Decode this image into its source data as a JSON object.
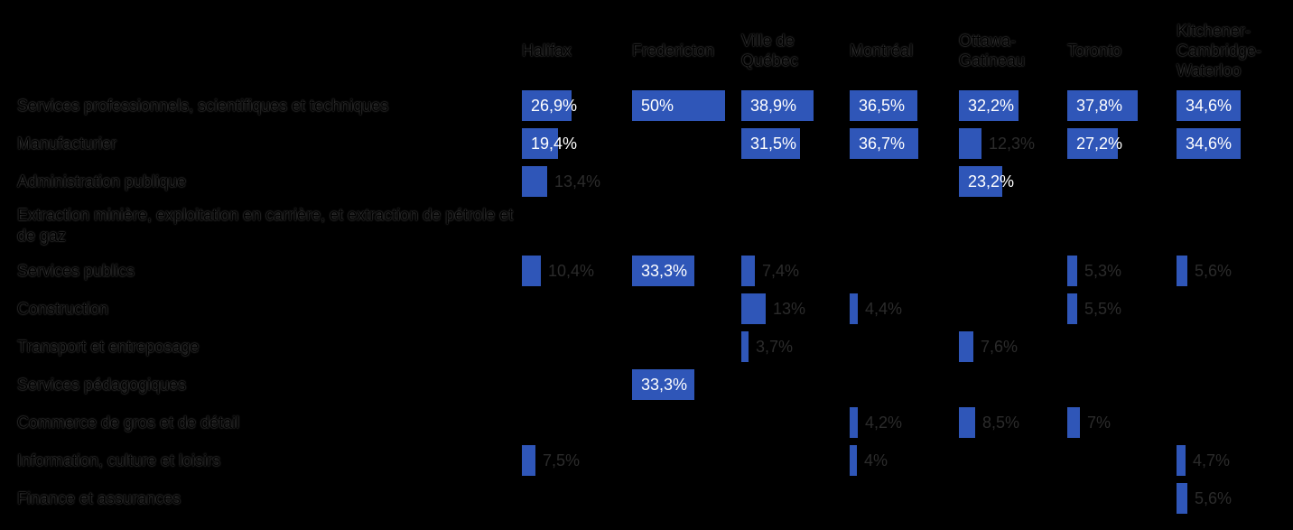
{
  "colors": {
    "bar": "#2f56b8",
    "background": "#000000",
    "value_inside": "#ffffff",
    "value_outside": "#2b2b2b"
  },
  "chart_data": {
    "type": "table",
    "columns": [
      "Halifax",
      "Fredericton",
      "Ville de Québec",
      "Montréal",
      "Ottawa-Gatineau",
      "Toronto",
      "Kitchener-Cambridge-Waterloo"
    ],
    "column_labels": [
      [
        "Halifax"
      ],
      [
        "Fredericton"
      ],
      [
        "Ville de",
        "Québec"
      ],
      [
        "Montréal"
      ],
      [
        "Ottawa-",
        "Gatineau"
      ],
      [
        "Toronto"
      ],
      [
        "Kitchener-",
        "Cambridge-",
        "Waterloo"
      ]
    ],
    "rows": [
      "Services professionnels, scientifiques et techniques",
      "Manufacturier",
      "Administration publique",
      "Extraction minière, exploitation en carrière, et extraction de pétrole et de gaz",
      "Services publics",
      "Construction",
      "Transport et entreposage",
      "Services pédagogiques",
      "Commerce de gros et de détail",
      "Information, culture et loisirs",
      "Finance et assurances"
    ],
    "values": [
      [
        26.9,
        50,
        38.9,
        36.5,
        32.2,
        37.8,
        34.6
      ],
      [
        19.4,
        null,
        31.5,
        36.7,
        12.3,
        27.2,
        34.6
      ],
      [
        13.4,
        null,
        null,
        null,
        23.2,
        null,
        null
      ],
      [
        null,
        null,
        null,
        null,
        null,
        null,
        null
      ],
      [
        10.4,
        33.3,
        7.4,
        null,
        null,
        5.3,
        5.6
      ],
      [
        null,
        null,
        13,
        4.4,
        null,
        5.5,
        null
      ],
      [
        null,
        null,
        3.7,
        null,
        7.6,
        null,
        null
      ],
      [
        null,
        33.3,
        null,
        null,
        null,
        null,
        null
      ],
      [
        null,
        null,
        null,
        4.2,
        8.5,
        7,
        null
      ],
      [
        7.5,
        null,
        null,
        4,
        null,
        null,
        4.7
      ],
      [
        null,
        null,
        null,
        null,
        null,
        null,
        5.6
      ]
    ],
    "value_labels": [
      [
        "26,9%",
        "50%",
        "38,9%",
        "36,5%",
        "32,2%",
        "37,8%",
        "34,6%"
      ],
      [
        "19,4%",
        null,
        "31,5%",
        "36,7%",
        "12,3%",
        "27,2%",
        "34,6%"
      ],
      [
        "13,4%",
        null,
        null,
        null,
        "23,2%",
        null,
        null
      ],
      [
        null,
        null,
        null,
        null,
        null,
        null,
        null
      ],
      [
        "10,4%",
        "33,3%",
        "7,4%",
        null,
        null,
        "5,3%",
        "5,6%"
      ],
      [
        null,
        null,
        "13%",
        "4,4%",
        null,
        "5,5%",
        null
      ],
      [
        null,
        null,
        "3,7%",
        null,
        "7,6%",
        null,
        null
      ],
      [
        null,
        "33,3%",
        null,
        null,
        null,
        null,
        null
      ],
      [
        null,
        null,
        null,
        "4,2%",
        "8,5%",
        "7%",
        null
      ],
      [
        "7,5%",
        null,
        null,
        "4%",
        null,
        null,
        "4,7%"
      ],
      [
        null,
        null,
        null,
        null,
        null,
        null,
        "5,6%"
      ]
    ],
    "scale_max": 50
  }
}
